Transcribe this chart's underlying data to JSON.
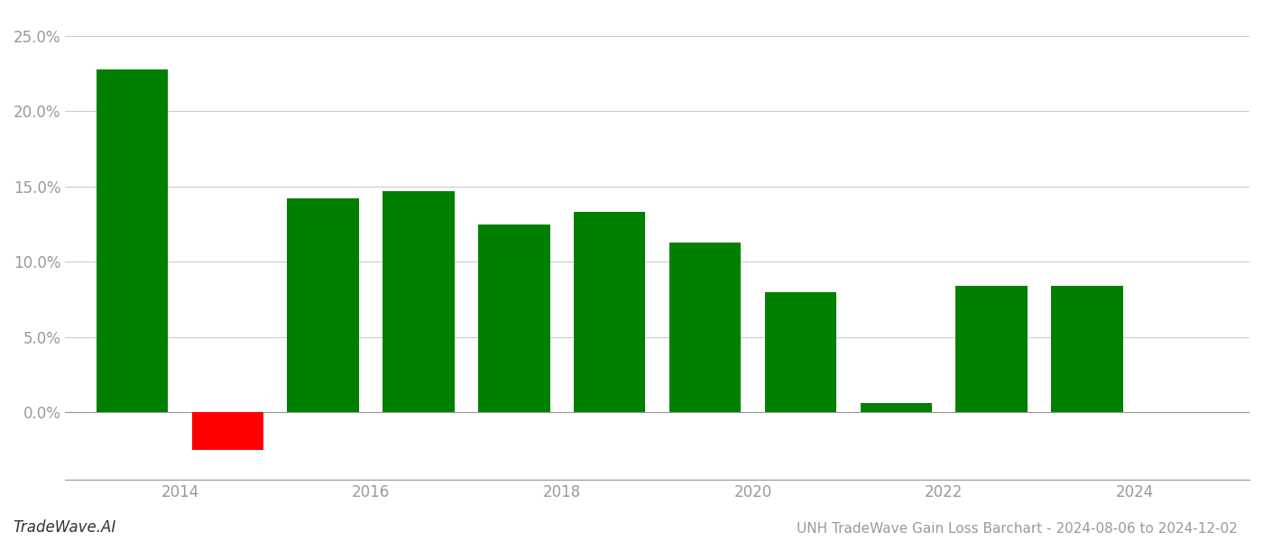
{
  "years": [
    2013.5,
    2014.5,
    2015.5,
    2016.5,
    2017.5,
    2018.5,
    2019.5,
    2020.5,
    2021.5,
    2022.5,
    2023.5
  ],
  "values": [
    0.228,
    -0.025,
    0.142,
    0.147,
    0.125,
    0.133,
    0.113,
    0.08,
    0.006,
    0.084,
    0.084
  ],
  "colors": [
    "#008000",
    "#ff0000",
    "#008000",
    "#008000",
    "#008000",
    "#008000",
    "#008000",
    "#008000",
    "#008000",
    "#008000",
    "#008000"
  ],
  "title": "UNH TradeWave Gain Loss Barchart - 2024-08-06 to 2024-12-02",
  "watermark": "TradeWave.AI",
  "xlim": [
    2012.8,
    2025.2
  ],
  "ylim": [
    -0.045,
    0.265
  ],
  "yticks": [
    0.0,
    0.05,
    0.1,
    0.15,
    0.2,
    0.25
  ],
  "xticks": [
    2014,
    2016,
    2018,
    2020,
    2022,
    2024
  ],
  "bar_width": 0.75,
  "background_color": "#ffffff",
  "grid_color": "#cccccc",
  "axes_color": "#999999",
  "tick_color": "#999999",
  "title_fontsize": 11,
  "watermark_fontsize": 12
}
